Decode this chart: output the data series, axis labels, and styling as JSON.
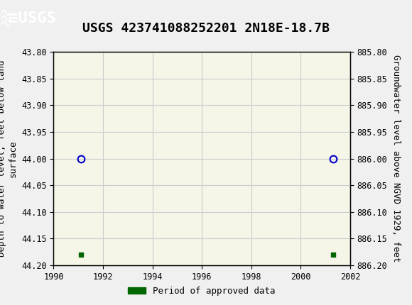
{
  "title": "USGS 423741088252201 2N18E-18.7B",
  "xlabel": "",
  "ylabel_left": "Depth to water level, feet below land\nsurface",
  "ylabel_right": "Groundwater level above NGVD 1929, feet",
  "xlim": [
    1990,
    2002
  ],
  "ylim_left": [
    43.8,
    44.2
  ],
  "ylim_right": [
    885.8,
    886.2
  ],
  "xticks": [
    1990,
    1992,
    1994,
    1996,
    1998,
    2000,
    2002
  ],
  "yticks_left": [
    43.8,
    43.85,
    43.9,
    43.95,
    44.0,
    44.05,
    44.1,
    44.15,
    44.2
  ],
  "yticks_right": [
    886.2,
    886.15,
    886.1,
    886.05,
    886.0,
    885.95,
    885.9,
    885.85,
    885.8
  ],
  "circle_points_x": [
    1991.1,
    2001.3
  ],
  "circle_points_y": [
    44.0,
    44.0
  ],
  "square_points_x": [
    1991.1,
    2001.3
  ],
  "square_points_y": [
    44.18,
    44.18
  ],
  "circle_color": "#0000cc",
  "square_color": "#006600",
  "header_bg_color": "#006633",
  "header_text_color": "#ffffff",
  "plot_bg_color": "#f5f5e8",
  "grid_color": "#cccccc",
  "legend_label": "Period of approved data",
  "font_family": "monospace",
  "title_fontsize": 13,
  "axis_label_fontsize": 9,
  "tick_fontsize": 8.5
}
